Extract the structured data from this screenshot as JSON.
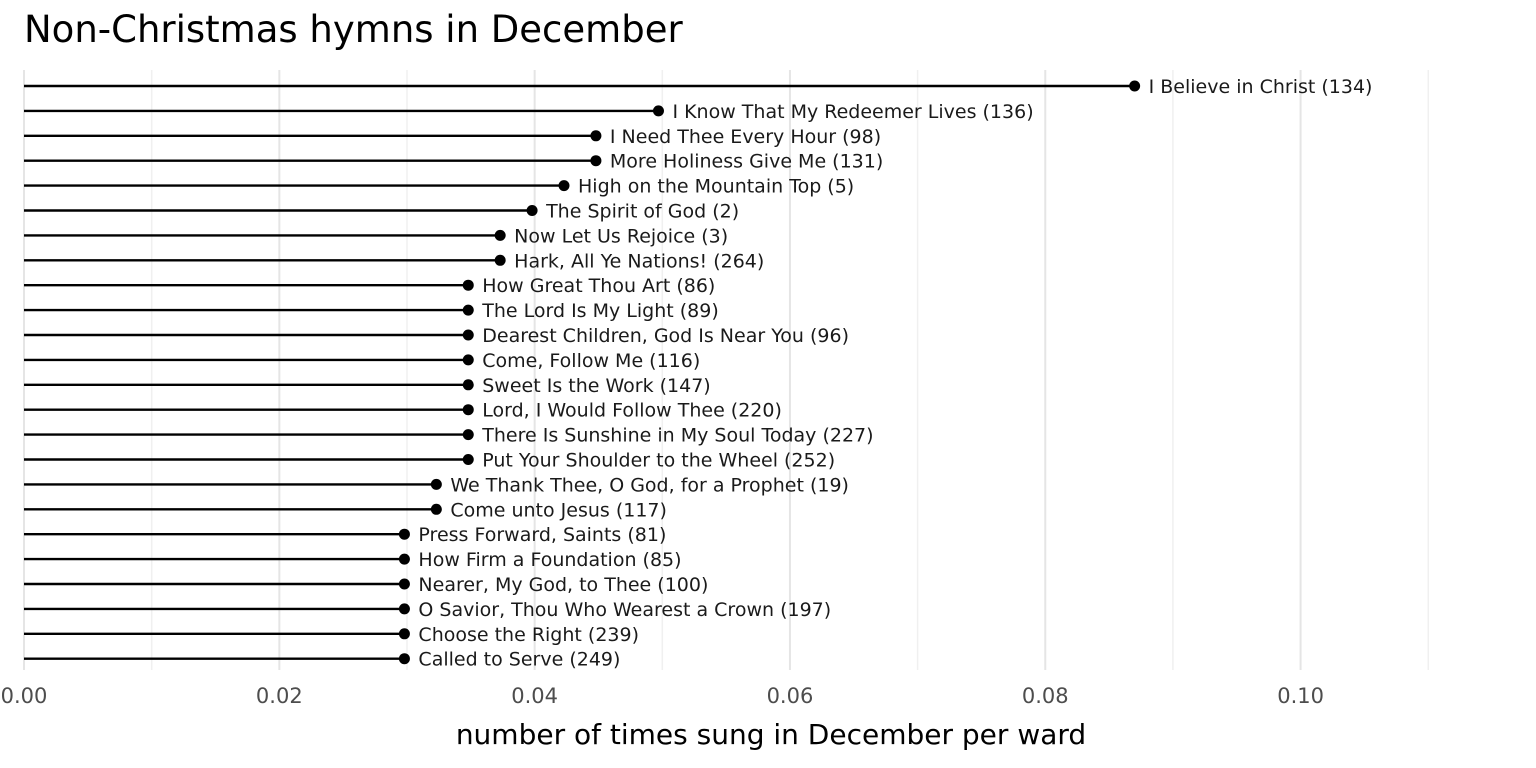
{
  "chart_data": {
    "type": "lollipop",
    "title": "Non-Christmas hymns in December",
    "xlabel": "number of times sung in December per ward",
    "ylabel": "",
    "xlim": [
      0,
      0.1175
    ],
    "x_ticks": [
      0,
      0.02,
      0.04,
      0.06,
      0.08,
      0.1
    ],
    "x_tick_labels": [
      "0.00",
      "0.02",
      "0.04",
      "0.06",
      "0.08",
      "0.10"
    ],
    "grid": true,
    "legend": "none",
    "colors": {
      "stem": "#000000",
      "point": "#000000",
      "grid": "#e5e5e5",
      "tick": "#4d4d4d"
    },
    "points": [
      {
        "label": "I Believe in Christ (134)",
        "value": 0.087
      },
      {
        "label": "I Know That My Redeemer Lives (136)",
        "value": 0.0497
      },
      {
        "label": "I Need Thee Every Hour (98)",
        "value": 0.0448
      },
      {
        "label": "More Holiness Give Me (131)",
        "value": 0.0448
      },
      {
        "label": "High on the Mountain Top (5)",
        "value": 0.0423
      },
      {
        "label": "The Spirit of God (2)",
        "value": 0.0398
      },
      {
        "label": "Now Let Us Rejoice (3)",
        "value": 0.0373
      },
      {
        "label": "Hark, All Ye Nations! (264)",
        "value": 0.0373
      },
      {
        "label": "How Great Thou Art (86)",
        "value": 0.0348
      },
      {
        "label": "The Lord Is My Light (89)",
        "value": 0.0348
      },
      {
        "label": "Dearest Children, God Is Near You (96)",
        "value": 0.0348
      },
      {
        "label": "Come, Follow Me (116)",
        "value": 0.0348
      },
      {
        "label": "Sweet Is the Work (147)",
        "value": 0.0348
      },
      {
        "label": "Lord, I Would Follow Thee (220)",
        "value": 0.0348
      },
      {
        "label": "There Is Sunshine in My Soul Today (227)",
        "value": 0.0348
      },
      {
        "label": "Put Your Shoulder to the Wheel (252)",
        "value": 0.0348
      },
      {
        "label": "We Thank Thee, O God, for a Prophet (19)",
        "value": 0.0323
      },
      {
        "label": "Come unto Jesus (117)",
        "value": 0.0323
      },
      {
        "label": "Press Forward, Saints (81)",
        "value": 0.0298
      },
      {
        "label": "How Firm a Foundation (85)",
        "value": 0.0298
      },
      {
        "label": "Nearer, My God, to Thee (100)",
        "value": 0.0298
      },
      {
        "label": "O Savior, Thou Who Wearest a Crown (197)",
        "value": 0.0298
      },
      {
        "label": "Choose the Right (239)",
        "value": 0.0298
      },
      {
        "label": "Called to Serve (249)",
        "value": 0.0298
      }
    ]
  }
}
